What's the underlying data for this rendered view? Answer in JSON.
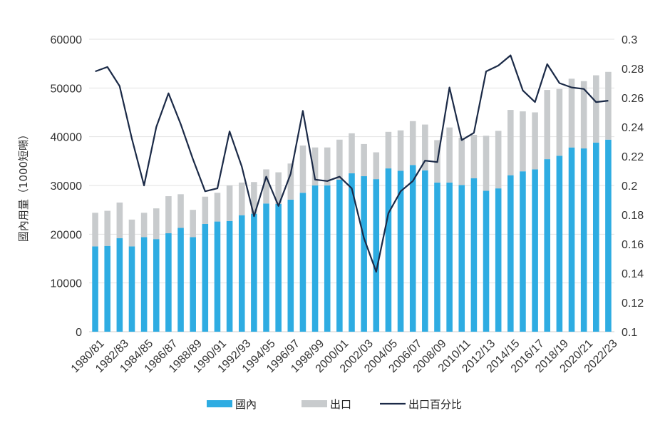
{
  "chart_data": {
    "type": "bar",
    "categories": [
      "1980/81",
      "1981/82",
      "1982/83",
      "1983/84",
      "1984/85",
      "1985/86",
      "1986/87",
      "1987/88",
      "1988/89",
      "1989/90",
      "1990/91",
      "1991/92",
      "1992/93",
      "1993/94",
      "1994/95",
      "1995/96",
      "1996/97",
      "1997/98",
      "1998/99",
      "1999/00",
      "2000/01",
      "2001/02",
      "2002/03",
      "2003/04",
      "2004/05",
      "2005/06",
      "2006/07",
      "2007/08",
      "2008/09",
      "2009/10",
      "2010/11",
      "2011/12",
      "2012/13",
      "2013/14",
      "2014/15",
      "2015/16",
      "2016/17",
      "2017/18",
      "2018/19",
      "2019/20",
      "2020/21",
      "2021/22",
      "2022/23"
    ],
    "tick_labels": [
      "1980/81",
      "1982/83",
      "1984/85",
      "1986/87",
      "1988/89",
      "1990/91",
      "1992/93",
      "1994/95",
      "1996/97",
      "1998/99",
      "2000/01",
      "2002/03",
      "2004/05",
      "2006/07",
      "2008/09",
      "2010/11",
      "2012/13",
      "2014/15",
      "2016/17",
      "2018/19",
      "2020/21",
      "2022/23"
    ],
    "ylabel": "國內用量（1000短噸）",
    "ylim": [
      0,
      60000
    ],
    "yticks": [
      "0",
      "10000",
      "20000",
      "30000",
      "40000",
      "50000",
      "60000"
    ],
    "y2lim": [
      0.1,
      0.3
    ],
    "y2ticks": [
      "0.1",
      "0.12",
      "0.14",
      "0.16",
      "0.18",
      "0.2",
      "0.22",
      "0.24",
      "0.26",
      "0.28",
      "0.3"
    ],
    "grid": true,
    "legend_position": "bottom",
    "series": [
      {
        "name": "國內",
        "type": "bar",
        "stack": "total",
        "axis": "left",
        "color": "#2eace2",
        "values": [
          17500,
          17600,
          19200,
          17500,
          19400,
          19000,
          20200,
          21300,
          19400,
          22100,
          22600,
          22700,
          23900,
          24200,
          26300,
          26200,
          27100,
          28500,
          30000,
          30000,
          31200,
          32500,
          31900,
          31300,
          33500,
          33000,
          34200,
          33100,
          30600,
          30600,
          30100,
          31500,
          28900,
          29400,
          32100,
          32900,
          33300,
          35400,
          36100,
          37800,
          37600,
          38800,
          39400
        ]
      },
      {
        "name": "出口",
        "type": "bar",
        "stack": "total",
        "axis": "left",
        "color": "#c8cbcd",
        "values": [
          6900,
          7200,
          7300,
          5500,
          5000,
          6300,
          7600,
          6900,
          5600,
          5600,
          5900,
          7300,
          6700,
          6500,
          7000,
          6500,
          7400,
          9700,
          7800,
          7800,
          8200,
          8200,
          6600,
          5500,
          7500,
          8300,
          9000,
          9400,
          8700,
          11300,
          9700,
          8900,
          11300,
          11800,
          13400,
          12300,
          11700,
          14200,
          13700,
          14100,
          13800,
          13800,
          13900
        ]
      },
      {
        "name": "出口百分比",
        "type": "line",
        "axis": "right",
        "color": "#1b2a47",
        "values": [
          0.278,
          0.281,
          0.268,
          0.232,
          0.2,
          0.24,
          0.263,
          0.242,
          0.218,
          0.196,
          0.198,
          0.237,
          0.213,
          0.179,
          0.206,
          0.186,
          0.208,
          0.251,
          0.204,
          0.203,
          0.206,
          0.198,
          0.164,
          0.141,
          0.181,
          0.196,
          0.203,
          0.217,
          0.216,
          0.267,
          0.231,
          0.236,
          0.278,
          0.282,
          0.289,
          0.265,
          0.257,
          0.283,
          0.27,
          0.267,
          0.266,
          0.257,
          0.258
        ]
      }
    ]
  }
}
